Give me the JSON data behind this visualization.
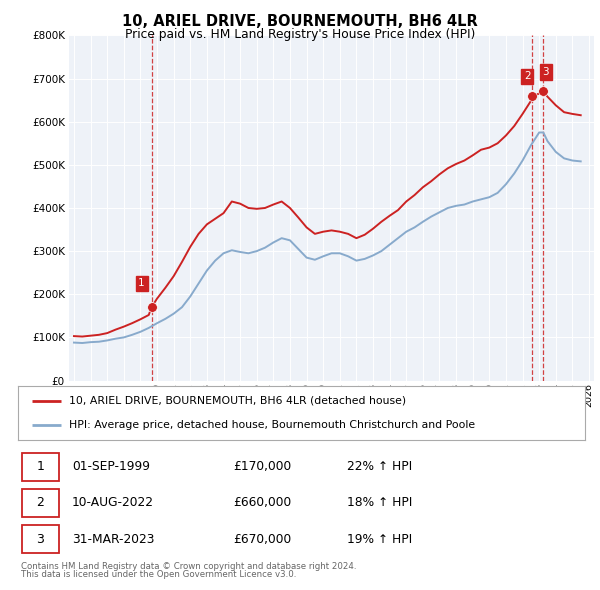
{
  "title": "10, ARIEL DRIVE, BOURNEMOUTH, BH6 4LR",
  "subtitle": "Price paid vs. HM Land Registry's House Price Index (HPI)",
  "legend_line1": "10, ARIEL DRIVE, BOURNEMOUTH, BH6 4LR (detached house)",
  "legend_line2": "HPI: Average price, detached house, Bournemouth Christchurch and Poole",
  "table_rows": [
    [
      "1",
      "01-SEP-1999",
      "£170,000",
      "22% ↑ HPI"
    ],
    [
      "2",
      "10-AUG-2022",
      "£660,000",
      "18% ↑ HPI"
    ],
    [
      "3",
      "31-MAR-2023",
      "£670,000",
      "19% ↑ HPI"
    ]
  ],
  "footnote1": "Contains HM Land Registry data © Crown copyright and database right 2024.",
  "footnote2": "This data is licensed under the Open Government Licence v3.0.",
  "red_line_color": "#cc2222",
  "blue_line_color": "#88aacc",
  "dashed_vertical_color": "#cc2222",
  "background_color": "#ffffff",
  "plot_bg_color": "#eef2f8",
  "grid_color": "#ffffff",
  "ylim": [
    0,
    800000
  ],
  "yticks": [
    0,
    100000,
    200000,
    300000,
    400000,
    500000,
    600000,
    700000,
    800000
  ],
  "sale_points": [
    {
      "year": 1999.67,
      "price": 170000,
      "label": "1"
    },
    {
      "year": 2022.58,
      "price": 660000,
      "label": "2"
    },
    {
      "year": 2023.25,
      "price": 670000,
      "label": "3"
    }
  ],
  "hpi_data": [
    [
      1995.0,
      88000
    ],
    [
      1995.5,
      87000
    ],
    [
      1996.0,
      89000
    ],
    [
      1996.5,
      90000
    ],
    [
      1997.0,
      93000
    ],
    [
      1997.5,
      97000
    ],
    [
      1998.0,
      100000
    ],
    [
      1998.5,
      106000
    ],
    [
      1999.0,
      113000
    ],
    [
      1999.5,
      122000
    ],
    [
      2000.0,
      133000
    ],
    [
      2000.5,
      143000
    ],
    [
      2001.0,
      155000
    ],
    [
      2001.5,
      170000
    ],
    [
      2002.0,
      195000
    ],
    [
      2002.5,
      225000
    ],
    [
      2003.0,
      255000
    ],
    [
      2003.5,
      278000
    ],
    [
      2004.0,
      295000
    ],
    [
      2004.5,
      302000
    ],
    [
      2005.0,
      298000
    ],
    [
      2005.5,
      295000
    ],
    [
      2006.0,
      300000
    ],
    [
      2006.5,
      308000
    ],
    [
      2007.0,
      320000
    ],
    [
      2007.5,
      330000
    ],
    [
      2008.0,
      325000
    ],
    [
      2008.5,
      305000
    ],
    [
      2009.0,
      285000
    ],
    [
      2009.5,
      280000
    ],
    [
      2010.0,
      288000
    ],
    [
      2010.5,
      295000
    ],
    [
      2011.0,
      295000
    ],
    [
      2011.5,
      288000
    ],
    [
      2012.0,
      278000
    ],
    [
      2012.5,
      282000
    ],
    [
      2013.0,
      290000
    ],
    [
      2013.5,
      300000
    ],
    [
      2014.0,
      315000
    ],
    [
      2014.5,
      330000
    ],
    [
      2015.0,
      345000
    ],
    [
      2015.5,
      355000
    ],
    [
      2016.0,
      368000
    ],
    [
      2016.5,
      380000
    ],
    [
      2017.0,
      390000
    ],
    [
      2017.5,
      400000
    ],
    [
      2018.0,
      405000
    ],
    [
      2018.5,
      408000
    ],
    [
      2019.0,
      415000
    ],
    [
      2019.5,
      420000
    ],
    [
      2020.0,
      425000
    ],
    [
      2020.5,
      435000
    ],
    [
      2021.0,
      455000
    ],
    [
      2021.5,
      480000
    ],
    [
      2022.0,
      510000
    ],
    [
      2022.5,
      545000
    ],
    [
      2023.0,
      575000
    ],
    [
      2023.25,
      575000
    ],
    [
      2023.5,
      555000
    ],
    [
      2024.0,
      530000
    ],
    [
      2024.5,
      515000
    ],
    [
      2025.0,
      510000
    ],
    [
      2025.5,
      508000
    ]
  ],
  "prop_data": [
    [
      1995.0,
      103000
    ],
    [
      1995.5,
      102000
    ],
    [
      1996.0,
      104000
    ],
    [
      1996.5,
      106000
    ],
    [
      1997.0,
      110000
    ],
    [
      1997.5,
      118000
    ],
    [
      1998.0,
      125000
    ],
    [
      1998.5,
      133000
    ],
    [
      1999.0,
      142000
    ],
    [
      1999.5,
      152000
    ],
    [
      1999.67,
      170000
    ],
    [
      2000.0,
      190000
    ],
    [
      2000.5,
      215000
    ],
    [
      2001.0,
      242000
    ],
    [
      2001.5,
      275000
    ],
    [
      2002.0,
      310000
    ],
    [
      2002.5,
      340000
    ],
    [
      2003.0,
      362000
    ],
    [
      2003.5,
      375000
    ],
    [
      2004.0,
      388000
    ],
    [
      2004.5,
      415000
    ],
    [
      2005.0,
      410000
    ],
    [
      2005.5,
      400000
    ],
    [
      2006.0,
      398000
    ],
    [
      2006.5,
      400000
    ],
    [
      2007.0,
      408000
    ],
    [
      2007.5,
      415000
    ],
    [
      2008.0,
      400000
    ],
    [
      2008.5,
      378000
    ],
    [
      2009.0,
      355000
    ],
    [
      2009.5,
      340000
    ],
    [
      2010.0,
      345000
    ],
    [
      2010.5,
      348000
    ],
    [
      2011.0,
      345000
    ],
    [
      2011.5,
      340000
    ],
    [
      2012.0,
      330000
    ],
    [
      2012.5,
      338000
    ],
    [
      2013.0,
      352000
    ],
    [
      2013.5,
      368000
    ],
    [
      2014.0,
      382000
    ],
    [
      2014.5,
      395000
    ],
    [
      2015.0,
      415000
    ],
    [
      2015.5,
      430000
    ],
    [
      2016.0,
      448000
    ],
    [
      2016.5,
      462000
    ],
    [
      2017.0,
      478000
    ],
    [
      2017.5,
      492000
    ],
    [
      2018.0,
      502000
    ],
    [
      2018.5,
      510000
    ],
    [
      2019.0,
      522000
    ],
    [
      2019.5,
      535000
    ],
    [
      2020.0,
      540000
    ],
    [
      2020.5,
      550000
    ],
    [
      2021.0,
      568000
    ],
    [
      2021.5,
      590000
    ],
    [
      2022.0,
      618000
    ],
    [
      2022.5,
      648000
    ],
    [
      2022.58,
      660000
    ],
    [
      2023.0,
      665000
    ],
    [
      2023.25,
      670000
    ],
    [
      2023.5,
      658000
    ],
    [
      2024.0,
      638000
    ],
    [
      2024.5,
      622000
    ],
    [
      2025.0,
      618000
    ],
    [
      2025.5,
      615000
    ]
  ]
}
